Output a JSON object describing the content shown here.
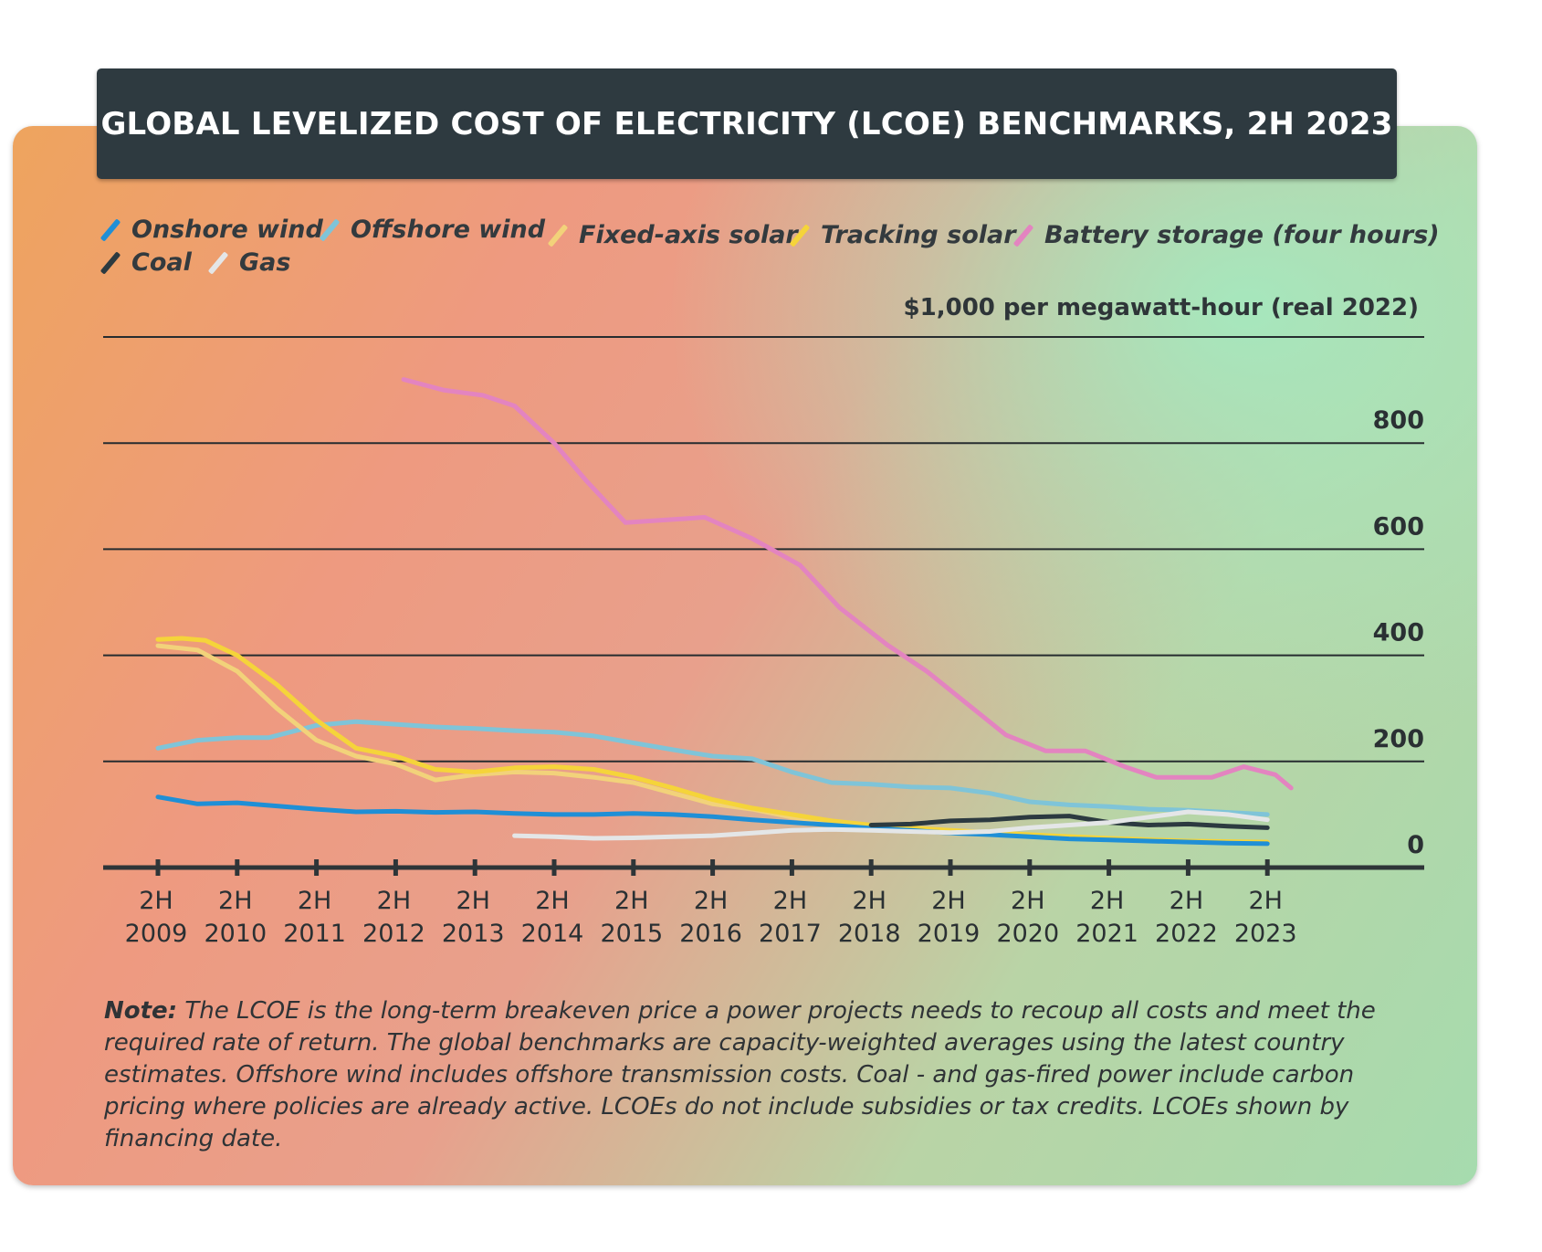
{
  "title": "GLOBAL LEVELIZED COST OF ELECTRICITY (LCOE) BENCHMARKS, 2H 2023",
  "unit_label": "$1,000 per megawatt-hour (real 2022)",
  "legend": [
    {
      "label": "Onshore wind",
      "color": "#1f8fd6"
    },
    {
      "label": "Offshore wind",
      "color": "#7fc4d8"
    },
    {
      "label": "Fixed-axis solar",
      "color": "#f2d27a"
    },
    {
      "label": "Tracking solar",
      "color": "#f5d43a"
    },
    {
      "label": "Battery storage (four hours)",
      "color": "#e384c0"
    },
    {
      "label": "Coal",
      "color": "#2c3a40"
    },
    {
      "label": "Gas",
      "color": "#e4e6e7"
    }
  ],
  "note": {
    "label": "Note:",
    "text": " The LCOE is the long-term breakeven price a power projects needs to recoup all costs and meet the required rate of return. The global benchmarks are capacity-weighted averages using the latest country estimates. Offshore wind includes offshore transmission costs. Coal - and gas-fired power include carbon pricing where policies are already active. LCOEs do not include subsidies or tax credits. LCOEs shown by financing date."
  },
  "chart_data": {
    "type": "line",
    "title": "GLOBAL LEVELIZED COST OF ELECTRICITY (LCOE) BENCHMARKS, 2H 2023",
    "ylabel": "$1,000 per megawatt-hour (real 2022)",
    "ylim": [
      0,
      1000
    ],
    "yticks": [
      {
        "value": 1000,
        "label": ""
      },
      {
        "value": 800,
        "label": "800"
      },
      {
        "value": 600,
        "label": "600"
      },
      {
        "value": 400,
        "label": "400"
      },
      {
        "value": 200,
        "label": "200"
      },
      {
        "value": 0,
        "label": "0"
      }
    ],
    "categories": [
      "2H 2009",
      "2H 2010",
      "2H 2011",
      "2H 2012",
      "2H 2013",
      "2H 2014",
      "2H 2015",
      "2H 2016",
      "2H 2017",
      "2H 2018",
      "2H 2019",
      "2H 2020",
      "2H 2021",
      "2H 2022",
      "2H 2023"
    ],
    "series": [
      {
        "name": "Battery storage (four hours)",
        "color": "#e384c0",
        "x": [
          3.1,
          3.6,
          4.1,
          4.5,
          5.0,
          5.4,
          5.9,
          6.4,
          6.9,
          7.5,
          8.1,
          8.6,
          9.2,
          9.7,
          10.2,
          10.7,
          11.2,
          11.7,
          12.2,
          12.6,
          12.95,
          13.3,
          13.7,
          14.1,
          14.3
        ],
        "values": [
          920,
          900,
          890,
          870,
          800,
          730,
          650,
          655,
          660,
          620,
          570,
          490,
          420,
          370,
          310,
          250,
          220,
          220,
          190,
          170,
          170,
          170,
          190,
          175,
          150
        ]
      },
      {
        "name": "Offshore wind",
        "color": "#7fc4d8",
        "x": [
          0,
          0.5,
          1.0,
          1.4,
          2.0,
          2.5,
          3.0,
          3.5,
          4.0,
          4.5,
          5.0,
          5.5,
          6.0,
          6.5,
          7.0,
          7.5,
          8.0,
          8.5,
          9.0,
          9.5,
          10.0,
          10.5,
          11.0,
          11.5,
          12.0,
          12.5,
          13.0,
          13.5,
          14.0
        ],
        "values": [
          225,
          240,
          245,
          245,
          268,
          275,
          270,
          265,
          262,
          258,
          255,
          248,
          235,
          222,
          210,
          205,
          180,
          160,
          157,
          152,
          150,
          140,
          124,
          118,
          115,
          110,
          108,
          104,
          100
        ]
      },
      {
        "name": "Fixed-axis solar",
        "color": "#f2d27a",
        "x": [
          0,
          0.5,
          1.0,
          1.5,
          2.0,
          2.5,
          3.0,
          3.5,
          4.0,
          4.5,
          5.0,
          5.5,
          6.0,
          6.5,
          7.0,
          7.5,
          8.0,
          8.5,
          9.0,
          9.5,
          10.0,
          11.0,
          12.0,
          13.0,
          14.0
        ],
        "values": [
          418,
          410,
          370,
          300,
          240,
          210,
          195,
          165,
          175,
          180,
          178,
          170,
          160,
          140,
          120,
          110,
          95,
          85,
          78,
          72,
          68,
          60,
          52,
          48,
          45
        ]
      },
      {
        "name": "Tracking solar",
        "color": "#f5d43a",
        "x": [
          0,
          0.3,
          0.6,
          1.0,
          1.5,
          2.0,
          2.5,
          3.0,
          3.5,
          4.0,
          4.5,
          5.0,
          5.5,
          6.0,
          6.5,
          7.0,
          7.5,
          8.0,
          8.5,
          9.0,
          9.5,
          10.0,
          11.0,
          12.0,
          13.0,
          14.0
        ],
        "values": [
          430,
          432,
          428,
          400,
          345,
          278,
          225,
          210,
          185,
          180,
          188,
          190,
          185,
          170,
          150,
          128,
          112,
          100,
          88,
          80,
          75,
          70,
          62,
          55,
          50,
          48
        ]
      },
      {
        "name": "Onshore wind",
        "color": "#1f8fd6",
        "x": [
          0,
          0.5,
          1.0,
          1.5,
          2.0,
          2.5,
          3.0,
          3.5,
          4.0,
          4.5,
          5.0,
          5.5,
          6.0,
          6.5,
          7.0,
          7.5,
          8.0,
          8.5,
          9.0,
          9.5,
          10.0,
          10.5,
          11.0,
          11.5,
          12.0,
          12.5,
          13.0,
          13.5,
          14.0
        ],
        "values": [
          133,
          120,
          122,
          116,
          110,
          105,
          106,
          104,
          105,
          102,
          100,
          100,
          102,
          100,
          96,
          90,
          85,
          80,
          74,
          70,
          65,
          62,
          58,
          54,
          52,
          50,
          48,
          46,
          45
        ]
      },
      {
        "name": "Coal",
        "color": "#2c3a40",
        "x": [
          9.0,
          9.5,
          10.0,
          10.5,
          11.0,
          11.5,
          12.0,
          12.5,
          13.0,
          13.5,
          14.0
        ],
        "values": [
          80,
          82,
          88,
          90,
          95,
          97,
          85,
          80,
          82,
          78,
          75
        ]
      },
      {
        "name": "Gas",
        "color": "#e4e6e7",
        "x": [
          4.5,
          5.0,
          5.5,
          6.0,
          6.5,
          7.0,
          7.5,
          8.0,
          8.5,
          9.0,
          9.5,
          10.0,
          10.5,
          11.0,
          11.5,
          12.0,
          12.5,
          13.0,
          13.5,
          14.0
        ],
        "values": [
          60,
          58,
          55,
          56,
          58,
          60,
          65,
          70,
          72,
          70,
          68,
          66,
          68,
          75,
          80,
          85,
          95,
          105,
          100,
          90
        ]
      }
    ]
  }
}
